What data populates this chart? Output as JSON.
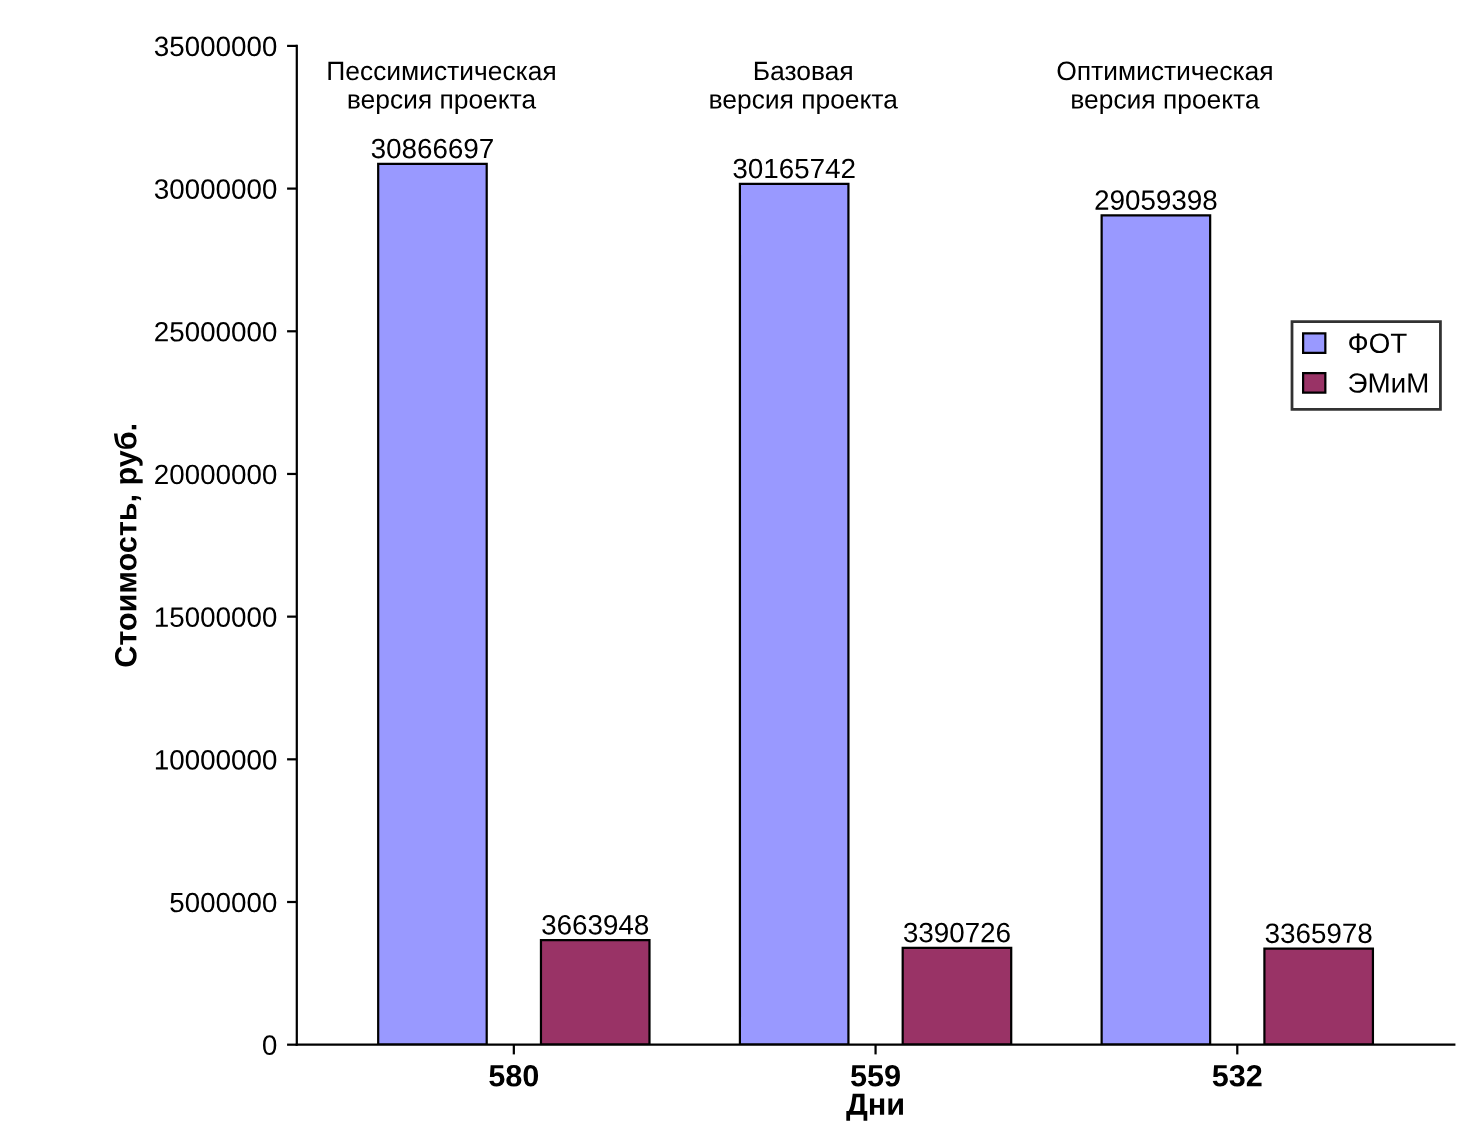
{
  "chart_data": {
    "type": "bar",
    "categories": [
      "580",
      "559",
      "532"
    ],
    "series": [
      {
        "name": "ФОТ",
        "color": "#9999ff",
        "values": [
          30866697,
          30165742,
          29059398
        ]
      },
      {
        "name": "ЭМиМ",
        "color": "#993366",
        "values": [
          3663948,
          3390726,
          3365978
        ]
      }
    ],
    "xlabel": "Дни",
    "ylabel": "Стоимость, руб.",
    "ylim": [
      0,
      35000000
    ],
    "yticks": [
      0,
      5000000,
      10000000,
      15000000,
      20000000,
      25000000,
      30000000,
      35000000
    ],
    "annotations": [
      "Пессимистическая\nверсия проекта",
      "Базовая\nверсия проекта",
      "Оптимистическая\nверсия проекта"
    ],
    "data_labels": true,
    "grid": false,
    "legend": "right"
  }
}
